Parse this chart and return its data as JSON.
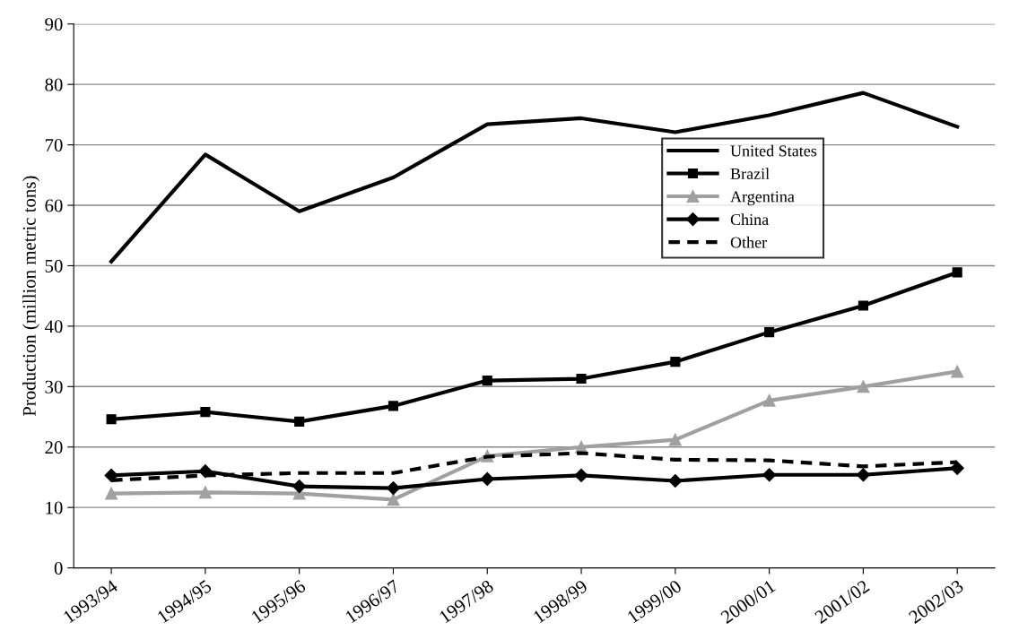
{
  "chart_data": {
    "type": "line",
    "ylabel": "Production (million metric tons)",
    "categories": [
      "1993/94",
      "1994/95",
      "1995/96",
      "1996/97",
      "1997/98",
      "1998/99",
      "1999/00",
      "2000/01",
      "2001/02",
      "2002/03"
    ],
    "series": [
      {
        "name": "United States",
        "color": "#000000",
        "marker": "none",
        "line_style": "solid",
        "values": [
          50.7,
          68.4,
          59.0,
          64.6,
          73.4,
          74.4,
          72.1,
          74.9,
          78.6,
          73.0
        ]
      },
      {
        "name": "Brazil",
        "color": "#000000",
        "marker": "square",
        "line_style": "solid",
        "values": [
          24.6,
          25.8,
          24.2,
          26.8,
          31.0,
          31.3,
          34.1,
          39.0,
          43.4,
          48.9
        ]
      },
      {
        "name": "Argentina",
        "color": "#a0a0a0",
        "marker": "triangle",
        "line_style": "solid",
        "values": [
          12.3,
          12.5,
          12.3,
          11.3,
          18.5,
          20.0,
          21.2,
          27.7,
          30.0,
          32.5
        ]
      },
      {
        "name": "China",
        "color": "#000000",
        "marker": "diamond",
        "line_style": "solid",
        "values": [
          15.3,
          16.0,
          13.5,
          13.2,
          14.7,
          15.3,
          14.4,
          15.4,
          15.4,
          16.5
        ]
      },
      {
        "name": "Other",
        "color": "#000000",
        "marker": "none",
        "line_style": "dashed",
        "values": [
          14.5,
          15.3,
          15.7,
          15.7,
          18.4,
          19.0,
          17.9,
          17.8,
          16.8,
          17.5
        ]
      }
    ],
    "ylim": [
      0,
      90
    ],
    "yticks": [
      0,
      10,
      20,
      30,
      40,
      50,
      60,
      70,
      80,
      90
    ],
    "grid": "y",
    "legend": "right"
  }
}
